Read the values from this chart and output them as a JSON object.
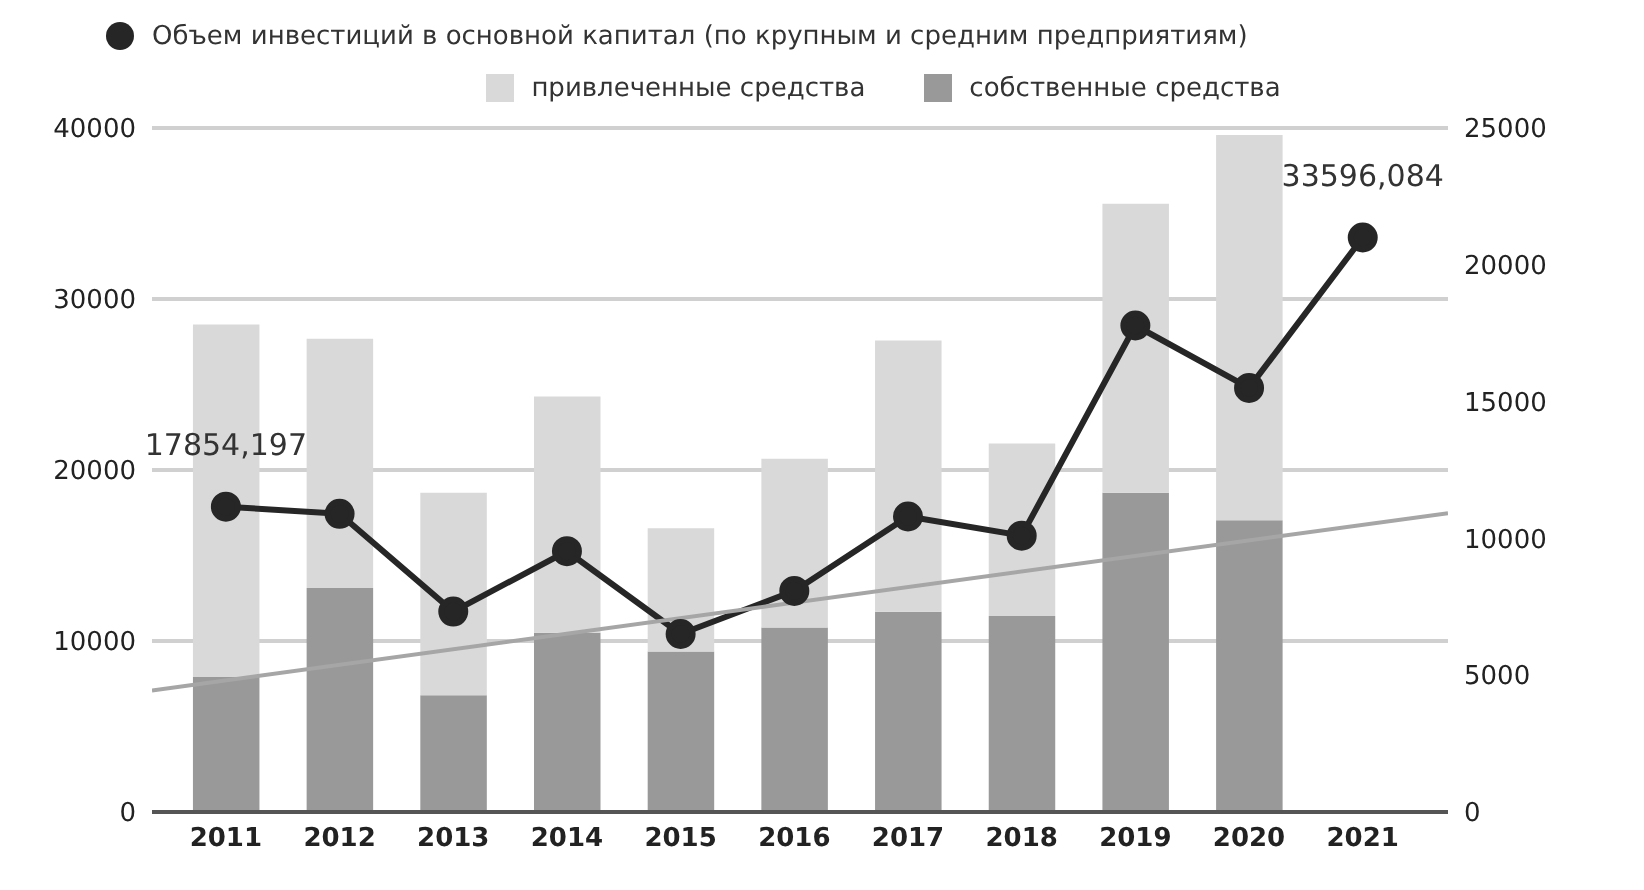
{
  "chart_data": {
    "type": "bar",
    "stacked": true,
    "x": [
      2011,
      2012,
      2013,
      2014,
      2015,
      2016,
      2017,
      2018,
      2019,
      2020,
      2021
    ],
    "series": [
      {
        "name": "собственные средства",
        "color": "#999999",
        "axis": "y2",
        "values": [
          4930,
          8190,
          4270,
          6550,
          5870,
          6740,
          7320,
          7160,
          11670,
          10660,
          null
        ]
      },
      {
        "name": "привлеченные средства",
        "color": "#d9d9d9",
        "axis": "y2",
        "values": [
          12890,
          9110,
          7400,
          8640,
          4500,
          6170,
          9910,
          6310,
          10560,
          14080,
          null
        ]
      },
      {
        "name": "Объем инвестиций в основной капитал (по крупным и средним предприятиям)",
        "type": "line",
        "color": "#262626",
        "marker": "circle",
        "values": [
          17854.197,
          17440,
          11720,
          15250,
          10410,
          12930,
          17280,
          16160,
          28450,
          24800,
          33596.084
        ],
        "value_labels": [
          "17854,197",
          null,
          null,
          null,
          null,
          null,
          null,
          null,
          null,
          null,
          "33596,084"
        ]
      },
      {
        "type": "line",
        "color": "#a6a6a6",
        "axis": "y2",
        "marker": "none",
        "x": [
          2010.35,
          2021.75
        ],
        "values": [
          4440,
          10920
        ]
      }
    ],
    "xlim": [
      2010.35,
      2021.75
    ],
    "xticks": [
      2011,
      2012,
      2013,
      2014,
      2015,
      2016,
      2017,
      2018,
      2019,
      2020,
      2021
    ],
    "ylim": [
      0,
      40000
    ],
    "yticks": [
      0,
      10000,
      20000,
      30000,
      40000
    ],
    "y2lim": [
      0,
      25000
    ],
    "y2ticks": [
      0,
      5000,
      10000,
      15000,
      20000,
      25000
    ],
    "grid": "y",
    "legend": "top"
  }
}
